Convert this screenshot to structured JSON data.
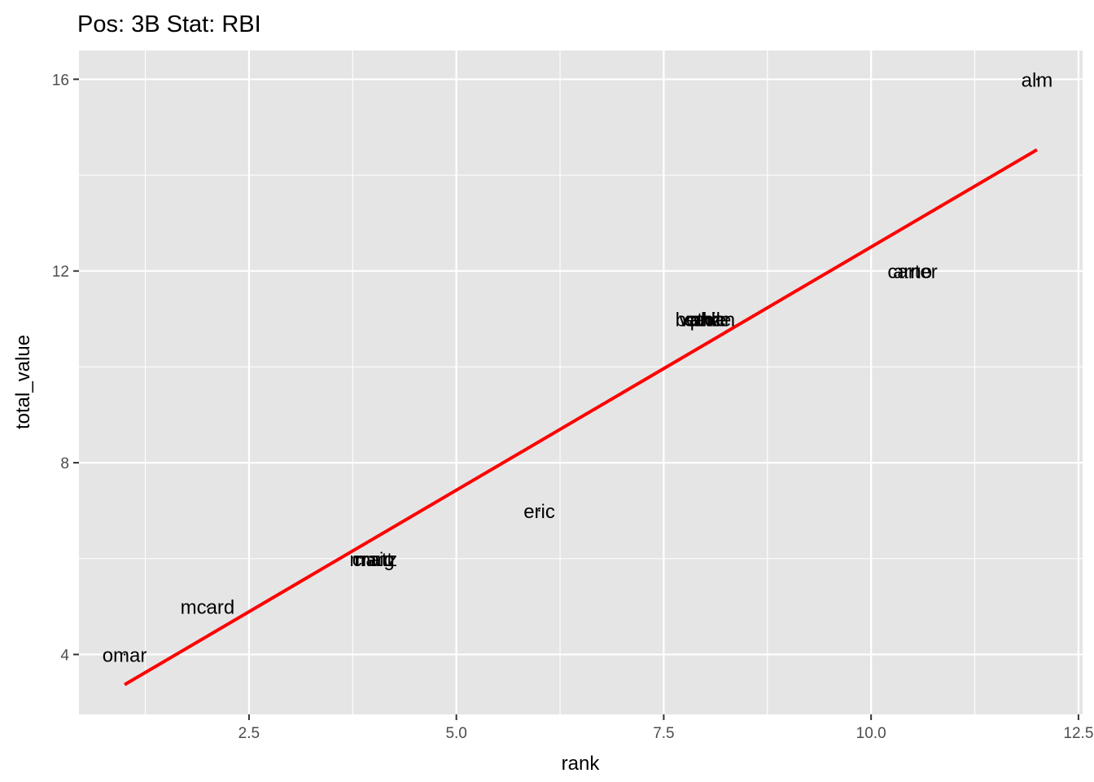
{
  "chart_data": {
    "type": "scatter",
    "title": "Pos: 3B Stat: RBI",
    "xlabel": "rank",
    "ylabel": "total_value",
    "xlim": [
      0.45,
      12.55
    ],
    "ylim": [
      2.75,
      16.6
    ],
    "x_ticks": [
      2.5,
      5.0,
      7.5,
      10.0,
      12.5
    ],
    "x_tick_labels": [
      "2.5",
      "5.0",
      "7.5",
      "10.0",
      "12.5"
    ],
    "y_ticks": [
      4,
      8,
      12,
      16
    ],
    "y_tick_labels": [
      "4",
      "8",
      "12",
      "16"
    ],
    "grid": true,
    "legend": "none",
    "points": [
      {
        "label": "omar",
        "x": 1,
        "y": 4
      },
      {
        "label": "mcard",
        "x": 2,
        "y": 5
      },
      {
        "label": "manz",
        "x": 4,
        "y": 6
      },
      {
        "label": "craig",
        "x": 4,
        "y": 6
      },
      {
        "label": "matt",
        "x": 4,
        "y": 6
      },
      {
        "label": "eric",
        "x": 6,
        "y": 7
      },
      {
        "label": "bethan",
        "x": 8,
        "y": 11
      },
      {
        "label": "vance",
        "x": 8,
        "y": 11
      },
      {
        "label": "phil",
        "x": 8,
        "y": 11
      },
      {
        "label": "cade",
        "x": 8,
        "y": 11
      },
      {
        "label": "carter",
        "x": 10.5,
        "y": 12
      },
      {
        "label": "arno",
        "x": 10.5,
        "y": 12
      },
      {
        "label": "alm",
        "x": 12,
        "y": 16
      }
    ],
    "fit_line": {
      "x": [
        1,
        12
      ],
      "y": [
        3.37,
        14.53
      ],
      "color": "#ff0000"
    },
    "colors": {
      "panel": "#e5e5e5",
      "grid": "#ffffff",
      "line": "#ff0000"
    }
  }
}
